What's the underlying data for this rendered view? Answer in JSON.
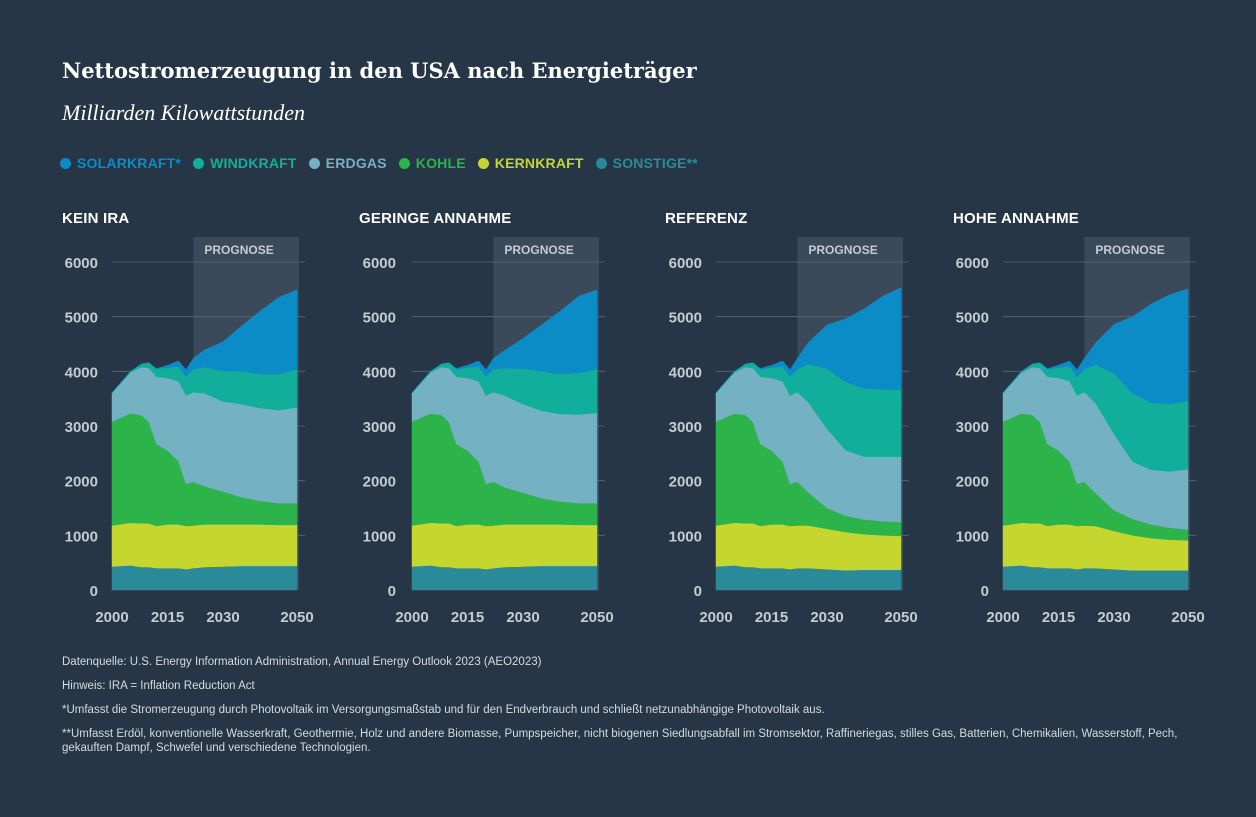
{
  "title": "Nettostromerzeugung in den USA nach Energieträger",
  "subtitle": "Milliarden Kilowattstunden",
  "legend": [
    {
      "label": "SOLARKRAFT*",
      "color": "#0b8cc6"
    },
    {
      "label": "WINDKRAFT",
      "color": "#12ae9c"
    },
    {
      "label": "ERDGAS",
      "color": "#74b1c2"
    },
    {
      "label": "KOHLE",
      "color": "#2cb34a"
    },
    {
      "label": "KERNKRAFT",
      "color": "#c5d72f"
    },
    {
      "label": "SONSTIGE**",
      "color": "#2a8a9a"
    }
  ],
  "forecast_label": "PROGNOSE",
  "chart_data": [
    {
      "type": "area",
      "stacked": true,
      "title": "KEIN IRA",
      "x": [
        2000,
        2005,
        2008,
        2010,
        2012,
        2015,
        2018,
        2020,
        2022,
        2025,
        2030,
        2035,
        2040,
        2045,
        2050
      ],
      "forecast_start": 2022,
      "x_ticks": [
        2000,
        2015,
        2030,
        2050
      ],
      "y_ticks": [
        0,
        1000,
        2000,
        3000,
        4000,
        5000,
        6000
      ],
      "ylim": [
        0,
        6000
      ],
      "series": [
        {
          "name": "SONSTIGE**",
          "values": [
            430,
            450,
            420,
            420,
            400,
            400,
            400,
            380,
            400,
            420,
            430,
            440,
            440,
            440,
            440
          ]
        },
        {
          "name": "KERNKRAFT",
          "values": [
            750,
            780,
            800,
            800,
            770,
            800,
            800,
            790,
            780,
            780,
            770,
            760,
            760,
            750,
            750
          ]
        },
        {
          "name": "KOHLE",
          "values": [
            1900,
            2000,
            1980,
            1850,
            1500,
            1350,
            1150,
            770,
            800,
            700,
            600,
            500,
            430,
            400,
            400
          ]
        },
        {
          "name": "ERDGAS",
          "values": [
            520,
            750,
            880,
            990,
            1230,
            1330,
            1470,
            1620,
            1640,
            1700,
            1650,
            1700,
            1700,
            1700,
            1750
          ]
        },
        {
          "name": "WINDKRAFT",
          "values": [
            10,
            20,
            55,
            95,
            140,
            190,
            270,
            340,
            420,
            480,
            560,
            600,
            620,
            660,
            700
          ]
        },
        {
          "name": "SOLARKRAFT*",
          "values": [
            0,
            0,
            2,
            4,
            10,
            40,
            100,
            130,
            200,
            310,
            530,
            830,
            1150,
            1400,
            1450
          ]
        }
      ]
    },
    {
      "type": "area",
      "stacked": true,
      "title": "GERINGE ANNAHME",
      "x": [
        2000,
        2005,
        2008,
        2010,
        2012,
        2015,
        2018,
        2020,
        2022,
        2025,
        2030,
        2035,
        2040,
        2045,
        2050
      ],
      "forecast_start": 2022,
      "x_ticks": [
        2000,
        2015,
        2030,
        2050
      ],
      "y_ticks": [
        0,
        1000,
        2000,
        3000,
        4000,
        5000,
        6000
      ],
      "ylim": [
        0,
        6000
      ],
      "series": [
        {
          "name": "SONSTIGE**",
          "values": [
            430,
            450,
            420,
            420,
            400,
            400,
            400,
            380,
            400,
            420,
            430,
            440,
            440,
            440,
            440
          ]
        },
        {
          "name": "KERNKRAFT",
          "values": [
            750,
            780,
            800,
            800,
            770,
            800,
            800,
            790,
            780,
            780,
            770,
            760,
            760,
            750,
            750
          ]
        },
        {
          "name": "KOHLE",
          "values": [
            1900,
            2000,
            1980,
            1850,
            1500,
            1350,
            1150,
            770,
            800,
            680,
            580,
            480,
            420,
            400,
            400
          ]
        },
        {
          "name": "ERDGAS",
          "values": [
            520,
            750,
            880,
            990,
            1230,
            1330,
            1470,
            1620,
            1640,
            1680,
            1620,
            1600,
            1600,
            1620,
            1650
          ]
        },
        {
          "name": "WINDKRAFT",
          "values": [
            10,
            20,
            55,
            95,
            140,
            190,
            270,
            340,
            420,
            500,
            650,
            720,
            730,
            760,
            800
          ]
        },
        {
          "name": "SOLARKRAFT*",
          "values": [
            0,
            0,
            2,
            4,
            10,
            40,
            100,
            130,
            200,
            320,
            550,
            850,
            1150,
            1400,
            1450
          ]
        }
      ]
    },
    {
      "type": "area",
      "stacked": true,
      "title": "REFERENZ",
      "x": [
        2000,
        2005,
        2008,
        2010,
        2012,
        2015,
        2018,
        2020,
        2022,
        2025,
        2030,
        2035,
        2040,
        2045,
        2050
      ],
      "forecast_start": 2022,
      "x_ticks": [
        2000,
        2015,
        2030,
        2050
      ],
      "y_ticks": [
        0,
        1000,
        2000,
        3000,
        4000,
        5000,
        6000
      ],
      "ylim": [
        0,
        6000
      ],
      "series": [
        {
          "name": "SONSTIGE**",
          "values": [
            430,
            450,
            420,
            420,
            400,
            400,
            400,
            380,
            400,
            400,
            380,
            360,
            370,
            370,
            370
          ]
        },
        {
          "name": "KERNKRAFT",
          "values": [
            750,
            780,
            800,
            800,
            770,
            800,
            800,
            790,
            780,
            780,
            740,
            700,
            650,
            630,
            620
          ]
        },
        {
          "name": "KOHLE",
          "values": [
            1900,
            2000,
            1980,
            1850,
            1500,
            1350,
            1150,
            770,
            800,
            600,
            380,
            300,
            270,
            260,
            250
          ]
        },
        {
          "name": "ERDGAS",
          "values": [
            520,
            750,
            880,
            990,
            1230,
            1330,
            1470,
            1620,
            1640,
            1650,
            1450,
            1200,
            1150,
            1180,
            1200
          ]
        },
        {
          "name": "WINDKRAFT",
          "values": [
            10,
            20,
            55,
            95,
            140,
            190,
            270,
            340,
            420,
            700,
            1100,
            1250,
            1250,
            1230,
            1220
          ]
        },
        {
          "name": "SOLARKRAFT*",
          "values": [
            0,
            0,
            2,
            4,
            10,
            40,
            100,
            130,
            200,
            400,
            800,
            1150,
            1450,
            1700,
            1870
          ]
        }
      ]
    },
    {
      "type": "area",
      "stacked": true,
      "title": "HOHE ANNAHME",
      "x": [
        2000,
        2005,
        2008,
        2010,
        2012,
        2015,
        2018,
        2020,
        2022,
        2025,
        2030,
        2035,
        2040,
        2045,
        2050
      ],
      "forecast_start": 2022,
      "x_ticks": [
        2000,
        2015,
        2030,
        2050
      ],
      "y_ticks": [
        0,
        1000,
        2000,
        3000,
        4000,
        5000,
        6000
      ],
      "ylim": [
        0,
        6000
      ],
      "series": [
        {
          "name": "SONSTIGE**",
          "values": [
            430,
            450,
            420,
            420,
            400,
            400,
            400,
            380,
            400,
            400,
            380,
            360,
            360,
            360,
            360
          ]
        },
        {
          "name": "KERNKRAFT",
          "values": [
            750,
            780,
            800,
            800,
            770,
            800,
            800,
            790,
            780,
            770,
            700,
            640,
            590,
            560,
            550
          ]
        },
        {
          "name": "KOHLE",
          "values": [
            1900,
            2000,
            1980,
            1850,
            1500,
            1350,
            1150,
            770,
            800,
            600,
            380,
            300,
            250,
            220,
            200
          ]
        },
        {
          "name": "ERDGAS",
          "values": [
            520,
            750,
            880,
            990,
            1230,
            1330,
            1470,
            1620,
            1640,
            1650,
            1400,
            1050,
            1000,
            1030,
            1100
          ]
        },
        {
          "name": "WINDKRAFT",
          "values": [
            10,
            20,
            55,
            95,
            140,
            190,
            270,
            340,
            420,
            700,
            1100,
            1250,
            1230,
            1230,
            1250
          ]
        },
        {
          "name": "SOLARKRAFT*",
          "values": [
            0,
            0,
            2,
            4,
            10,
            40,
            100,
            130,
            200,
            400,
            900,
            1400,
            1800,
            2000,
            2050
          ]
        }
      ]
    }
  ],
  "footnotes": {
    "source": "Datenquelle: U.S. Energy Information Administration, Annual Energy Outlook 2023 (AEO2023)",
    "note": "Hinweis: IRA = Inflation Reduction Act",
    "solar": "*Umfasst die Stromerzeugung durch Photovoltaik im Versorgungsmaßstab und für den Endverbrauch und schließt netzunabhängige Photovoltaik aus.",
    "other": "**Umfasst Erdöl, konventionelle Wasserkraft, Geothermie, Holz und andere Biomasse, Pumpspeicher, nicht biogenen Siedlungsabfall im Stromsektor, Raffineriegas, stilles Gas, Batterien, Chemikalien, Wasserstoff, Pech, gekauften Dampf, Schwefel und verschiedene Technologien."
  }
}
